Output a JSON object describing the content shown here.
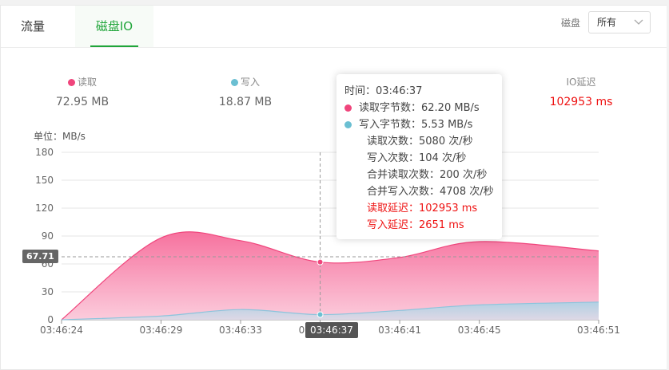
{
  "tabs": [
    {
      "label": "流量",
      "active": false
    },
    {
      "label": "磁盘IO",
      "active": true
    }
  ],
  "disk_filter": {
    "label": "磁盘",
    "selected": "所有"
  },
  "colors": {
    "accent": "#20a53a",
    "read": "#f0457c",
    "write": "#6bbfd2",
    "alert": "#e11111"
  },
  "stats": {
    "read": {
      "label": "读取",
      "value": "72.95 MB"
    },
    "write": {
      "label": "写入",
      "value": "18.87 MB"
    },
    "io_latency": {
      "label": "IO延迟",
      "value": "102953 ms"
    }
  },
  "chart": {
    "unit_label": "单位：MB/s",
    "hover_y_label": "67.71",
    "hover_x_label": "03:46:37"
  },
  "tooltip": {
    "time": "时间：03:46:37",
    "read_bytes": "读取字节数：62.20 MB/s",
    "write_bytes": "写入字节数：5.53 MB/s",
    "read_count": "读取次数：5080 次/秒",
    "write_count": "写入次数：104 次/秒",
    "merged_read": "合并读取次数：200 次/秒",
    "merged_write": "合并写入次数：4708 次/秒",
    "read_latency": "读取延迟：102953 ms",
    "write_latency": "写入延迟：2651 ms"
  },
  "chart_data": {
    "type": "area",
    "x": [
      "03:46:24",
      "03:46:29",
      "03:46:33",
      "03:46:37",
      "03:46:41",
      "03:46:45",
      "03:46:51"
    ],
    "series": [
      {
        "name": "读取",
        "values": [
          0,
          88,
          85,
          62,
          67,
          84,
          74
        ]
      },
      {
        "name": "写入",
        "values": [
          0,
          4,
          11,
          5.53,
          10,
          16,
          19
        ]
      }
    ],
    "yticks": [
      0,
      30,
      60,
      90,
      120,
      150,
      180
    ],
    "ylim": [
      0,
      180
    ],
    "grid": true
  }
}
